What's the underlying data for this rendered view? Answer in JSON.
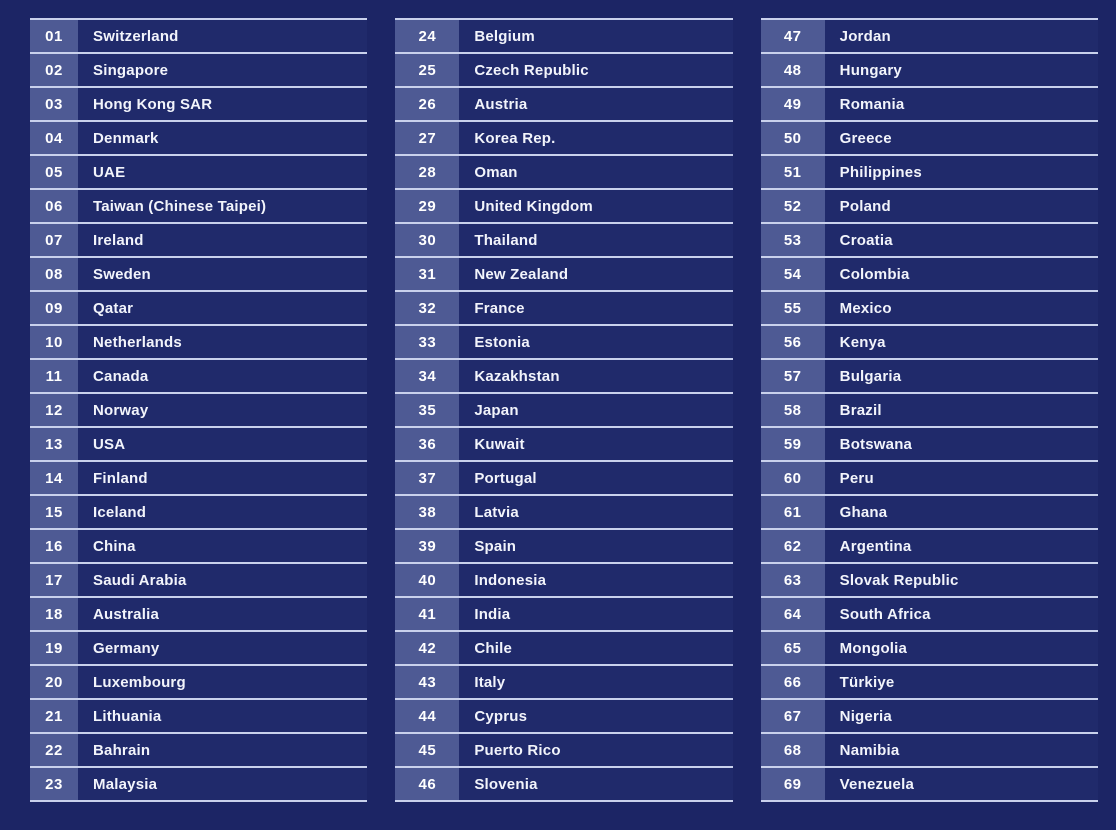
{
  "colors": {
    "background": "#1C2565",
    "row_background": "#202A6B",
    "rank_cell_background": "#4E5A94",
    "separator_line": "#C9D1EC",
    "text": "#F2F4FB",
    "rank_text": "#FFFFFF"
  },
  "table": {
    "columns": [
      {
        "label": "ranks-01-23",
        "rows": [
          {
            "rank": "01",
            "country": "Switzerland"
          },
          {
            "rank": "02",
            "country": "Singapore"
          },
          {
            "rank": "03",
            "country": "Hong Kong SAR"
          },
          {
            "rank": "04",
            "country": "Denmark"
          },
          {
            "rank": "05",
            "country": "UAE"
          },
          {
            "rank": "06",
            "country": "Taiwan (Chinese Taipei)"
          },
          {
            "rank": "07",
            "country": "Ireland"
          },
          {
            "rank": "08",
            "country": "Sweden"
          },
          {
            "rank": "09",
            "country": "Qatar"
          },
          {
            "rank": "10",
            "country": "Netherlands"
          },
          {
            "rank": "11",
            "country": "Canada"
          },
          {
            "rank": "12",
            "country": "Norway"
          },
          {
            "rank": "13",
            "country": "USA"
          },
          {
            "rank": "14",
            "country": "Finland"
          },
          {
            "rank": "15",
            "country": "Iceland"
          },
          {
            "rank": "16",
            "country": "China"
          },
          {
            "rank": "17",
            "country": "Saudi Arabia"
          },
          {
            "rank": "18",
            "country": "Australia"
          },
          {
            "rank": "19",
            "country": "Germany"
          },
          {
            "rank": "20",
            "country": "Luxembourg"
          },
          {
            "rank": "21",
            "country": "Lithuania"
          },
          {
            "rank": "22",
            "country": "Bahrain"
          },
          {
            "rank": "23",
            "country": "Malaysia"
          }
        ]
      },
      {
        "label": "ranks-24-46",
        "rows": [
          {
            "rank": "24",
            "country": "Belgium"
          },
          {
            "rank": "25",
            "country": "Czech Republic"
          },
          {
            "rank": "26",
            "country": "Austria"
          },
          {
            "rank": "27",
            "country": "Korea Rep."
          },
          {
            "rank": "28",
            "country": "Oman"
          },
          {
            "rank": "29",
            "country": "United Kingdom"
          },
          {
            "rank": "30",
            "country": "Thailand"
          },
          {
            "rank": "31",
            "country": "New Zealand"
          },
          {
            "rank": "32",
            "country": "France"
          },
          {
            "rank": "33",
            "country": "Estonia"
          },
          {
            "rank": "34",
            "country": "Kazakhstan"
          },
          {
            "rank": "35",
            "country": "Japan"
          },
          {
            "rank": "36",
            "country": "Kuwait"
          },
          {
            "rank": "37",
            "country": "Portugal"
          },
          {
            "rank": "38",
            "country": "Latvia"
          },
          {
            "rank": "39",
            "country": "Spain"
          },
          {
            "rank": "40",
            "country": "Indonesia"
          },
          {
            "rank": "41",
            "country": "India"
          },
          {
            "rank": "42",
            "country": "Chile"
          },
          {
            "rank": "43",
            "country": "Italy"
          },
          {
            "rank": "44",
            "country": "Cyprus"
          },
          {
            "rank": "45",
            "country": "Puerto Rico"
          },
          {
            "rank": "46",
            "country": "Slovenia"
          }
        ]
      },
      {
        "label": "ranks-47-69",
        "rows": [
          {
            "rank": "47",
            "country": "Jordan"
          },
          {
            "rank": "48",
            "country": "Hungary"
          },
          {
            "rank": "49",
            "country": "Romania"
          },
          {
            "rank": "50",
            "country": "Greece"
          },
          {
            "rank": "51",
            "country": "Philippines"
          },
          {
            "rank": "52",
            "country": "Poland"
          },
          {
            "rank": "53",
            "country": "Croatia"
          },
          {
            "rank": "54",
            "country": "Colombia"
          },
          {
            "rank": "55",
            "country": "Mexico"
          },
          {
            "rank": "56",
            "country": "Kenya"
          },
          {
            "rank": "57",
            "country": "Bulgaria"
          },
          {
            "rank": "58",
            "country": "Brazil"
          },
          {
            "rank": "59",
            "country": "Botswana"
          },
          {
            "rank": "60",
            "country": "Peru"
          },
          {
            "rank": "61",
            "country": "Ghana"
          },
          {
            "rank": "62",
            "country": "Argentina"
          },
          {
            "rank": "63",
            "country": "Slovak Republic"
          },
          {
            "rank": "64",
            "country": "South Africa"
          },
          {
            "rank": "65",
            "country": "Mongolia"
          },
          {
            "rank": "66",
            "country": "Türkiye"
          },
          {
            "rank": "67",
            "country": "Nigeria"
          },
          {
            "rank": "68",
            "country": "Namibia"
          },
          {
            "rank": "69",
            "country": "Venezuela"
          }
        ]
      }
    ]
  }
}
